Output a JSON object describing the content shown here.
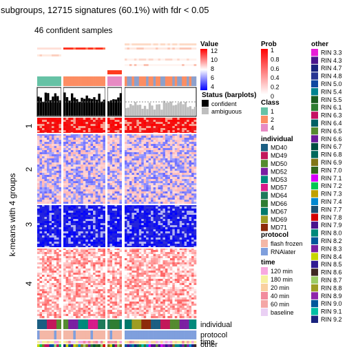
{
  "chart_data": {
    "type": "heatmap",
    "title": "subgroups, 12715 signatures (60.1%) with fdr < 0.05",
    "subtitle": "46 confident samples",
    "ylabel": "k-means with 4 groups",
    "row_groups": [
      "1",
      "2",
      "3",
      "4"
    ],
    "top_tracks": {
      "prob_label": "Prob",
      "class_label": "Class",
      "status_label": "Status (barplots)"
    },
    "bottom_tracks": [
      "individual",
      "protocol",
      "time",
      "other"
    ],
    "legends": {
      "value": {
        "title": "Value",
        "ticks": [
          "12",
          "10",
          "8",
          "6",
          "4"
        ],
        "colors": [
          "#ff0000",
          "#ffffff",
          "#0000ff"
        ]
      },
      "prob": {
        "title": "Prob",
        "ticks": [
          "1",
          "0.8",
          "0.6",
          "0.4",
          "0.2",
          "0"
        ],
        "colors": [
          "#ff0000",
          "#ffffff"
        ]
      },
      "class": {
        "title": "Class",
        "items": [
          {
            "label": "1",
            "color": "#66c2a5"
          },
          {
            "label": "2",
            "color": "#fc8d62"
          },
          {
            "label": "4",
            "color": "#e78ac3"
          }
        ]
      },
      "status": {
        "items": [
          {
            "label": "confident",
            "color": "#000000"
          },
          {
            "label": "ambiguous",
            "color": "#bebebe"
          }
        ]
      },
      "individual": {
        "title": "individual",
        "items": [
          {
            "label": "MD40",
            "color": "#1b5e82"
          },
          {
            "label": "MD49",
            "color": "#c2185b"
          },
          {
            "label": "MD50",
            "color": "#558b2f"
          },
          {
            "label": "MD52",
            "color": "#7b1fa2"
          },
          {
            "label": "MD53",
            "color": "#00897b"
          },
          {
            "label": "MD57",
            "color": "#d81b8a"
          },
          {
            "label": "MD64",
            "color": "#1e7a5a"
          },
          {
            "label": "MD66",
            "color": "#2e7d32"
          },
          {
            "label": "MD67",
            "color": "#00796b"
          },
          {
            "label": "MD69",
            "color": "#9e9d24"
          },
          {
            "label": "MD71",
            "color": "#8d2b0b"
          }
        ]
      },
      "protocol": {
        "title": "protocol",
        "items": [
          {
            "label": "flash frozen",
            "color": "#f4b7a6"
          },
          {
            "label": "RNAlater",
            "color": "#7f9fdd"
          }
        ]
      },
      "time": {
        "title": "time",
        "items": [
          {
            "label": "120 min",
            "color": "#f7a8e0"
          },
          {
            "label": "180 min",
            "color": "#f6f0a0"
          },
          {
            "label": "20 min",
            "color": "#f9d0a0"
          },
          {
            "label": "40 min",
            "color": "#f28b9e"
          },
          {
            "label": "60 min",
            "color": "#f4a6a6"
          },
          {
            "label": "baseline",
            "color": "#ead0f4"
          }
        ]
      },
      "other": {
        "title": "other",
        "items": [
          {
            "label": "RIN 3.3",
            "color": "#e81bd8"
          },
          {
            "label": "RIN 4.3",
            "color": "#4a148c"
          },
          {
            "label": "RIN 4.7",
            "color": "#1a237e"
          },
          {
            "label": "RIN 4.8",
            "color": "#283593"
          },
          {
            "label": "RIN 5.0",
            "color": "#0d47a1"
          },
          {
            "label": "RIN 5.4",
            "color": "#00838f"
          },
          {
            "label": "RIN 5.5",
            "color": "#1b5e20"
          },
          {
            "label": "RIN 6.1",
            "color": "#2e7d32"
          },
          {
            "label": "RIN 6.3",
            "color": "#c51162"
          },
          {
            "label": "RIN 6.4",
            "color": "#006064"
          },
          {
            "label": "RIN 6.5",
            "color": "#558b2f"
          },
          {
            "label": "RIN 6.6",
            "color": "#6a1b9a"
          },
          {
            "label": "RIN 6.7",
            "color": "#004d40"
          },
          {
            "label": "RIN 6.8",
            "color": "#00695c"
          },
          {
            "label": "RIN 6.9",
            "color": "#827717"
          },
          {
            "label": "RIN 7.0",
            "color": "#33691e"
          },
          {
            "label": "RIN 7.1",
            "color": "#d500f9"
          },
          {
            "label": "RIN 7.2",
            "color": "#00c853"
          },
          {
            "label": "RIN 7.3",
            "color": "#c0a000"
          },
          {
            "label": "RIN 7.4",
            "color": "#0288d1"
          },
          {
            "label": "RIN 7.7",
            "color": "#1b4f72"
          },
          {
            "label": "RIN 7.8",
            "color": "#d50000"
          },
          {
            "label": "RIN 7.9",
            "color": "#4a148c"
          },
          {
            "label": "RIN 8.0",
            "color": "#00897b"
          },
          {
            "label": "RIN 8.2",
            "color": "#01579b"
          },
          {
            "label": "RIN 8.3",
            "color": "#7b1fa2"
          },
          {
            "label": "RIN 8.4",
            "color": "#c6d600"
          },
          {
            "label": "RIN 8.5",
            "color": "#311b92"
          },
          {
            "label": "RIN 8.6",
            "color": "#3e2723"
          },
          {
            "label": "RIN 8.7",
            "color": "#9ccc65"
          },
          {
            "label": "RIN 8.8",
            "color": "#9e9d24"
          },
          {
            "label": "RIN 8.9",
            "color": "#8e24aa"
          },
          {
            "label": "RIN 9.0",
            "color": "#01579b"
          },
          {
            "label": "RIN 9.1",
            "color": "#00bfa5"
          },
          {
            "label": "RIN 9.2",
            "color": "#1a237e"
          }
        ]
      }
    }
  }
}
